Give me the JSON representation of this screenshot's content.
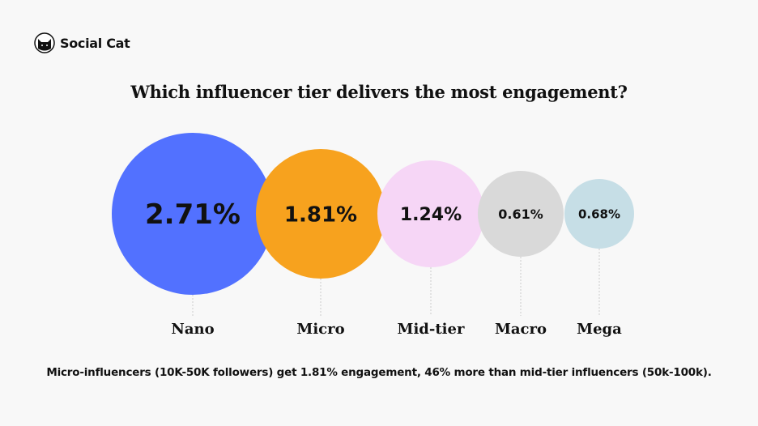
{
  "brand": {
    "name": "Social Cat",
    "logo_icon": "cat-head-icon"
  },
  "chart_data": {
    "type": "bubble",
    "title": "Which influencer tier delivers the most engagement?",
    "categories": [
      "Nano",
      "Micro",
      "Mid-tier",
      "Macro",
      "Mega"
    ],
    "values": [
      2.71,
      1.81,
      1.24,
      0.61,
      0.68
    ],
    "data_labels": [
      "2.71%",
      "1.81%",
      "1.24%",
      "0.61%",
      "0.68%"
    ],
    "unit": "%",
    "colors": [
      "#5271ff",
      "#f7a21e",
      "#f6d6f6",
      "#d9d9d9",
      "#c6dee6"
    ]
  },
  "caption": "Micro-influencers (10K-50K followers) get 1.81% engagement, 46% more than mid-tier influencers (50k-100k)."
}
